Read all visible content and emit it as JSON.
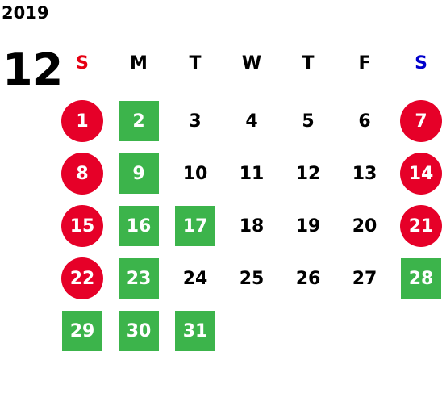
{
  "year": "2019",
  "month": "12",
  "weekdays": [
    {
      "label": "S",
      "color": "#e60012"
    },
    {
      "label": "M",
      "color": "#000000"
    },
    {
      "label": "T",
      "color": "#000000"
    },
    {
      "label": "W",
      "color": "#000000"
    },
    {
      "label": "T",
      "color": "#000000"
    },
    {
      "label": "F",
      "color": "#000000"
    },
    {
      "label": "S",
      "color": "#0000cc"
    }
  ],
  "weeks": [
    [
      {
        "day": "1",
        "mark": "red"
      },
      {
        "day": "2",
        "mark": "green"
      },
      {
        "day": "3"
      },
      {
        "day": "4"
      },
      {
        "day": "5"
      },
      {
        "day": "6"
      },
      {
        "day": "7",
        "mark": "red"
      }
    ],
    [
      {
        "day": "8",
        "mark": "red"
      },
      {
        "day": "9",
        "mark": "green"
      },
      {
        "day": "10"
      },
      {
        "day": "11"
      },
      {
        "day": "12"
      },
      {
        "day": "13"
      },
      {
        "day": "14",
        "mark": "red"
      }
    ],
    [
      {
        "day": "15",
        "mark": "red"
      },
      {
        "day": "16",
        "mark": "green"
      },
      {
        "day": "17",
        "mark": "green"
      },
      {
        "day": "18"
      },
      {
        "day": "19"
      },
      {
        "day": "20"
      },
      {
        "day": "21",
        "mark": "red"
      }
    ],
    [
      {
        "day": "22",
        "mark": "red"
      },
      {
        "day": "23",
        "mark": "green"
      },
      {
        "day": "24"
      },
      {
        "day": "25"
      },
      {
        "day": "26"
      },
      {
        "day": "27"
      },
      {
        "day": "28",
        "mark": "green"
      }
    ],
    [
      {
        "day": "29",
        "mark": "green"
      },
      {
        "day": "30",
        "mark": "green"
      },
      {
        "day": "31",
        "mark": "green"
      }
    ]
  ]
}
